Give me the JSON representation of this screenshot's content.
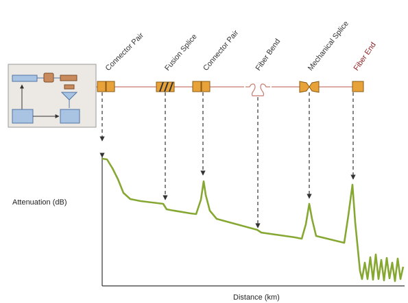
{
  "diagram": {
    "y_axis_label": "Attenuation (dB)",
    "x_axis_label": "Distance (km)",
    "events": [
      {
        "label": "Connector Pair",
        "type": "connector",
        "label_color": "#333333"
      },
      {
        "label": "Fusion Splice",
        "type": "fusion",
        "label_color": "#333333"
      },
      {
        "label": "Connector Pair",
        "type": "connector",
        "label_color": "#333333"
      },
      {
        "label": "Fiber Bend",
        "type": "bend",
        "label_color": "#333333"
      },
      {
        "label": "Mechanical Splice",
        "type": "mechanical",
        "label_color": "#333333"
      },
      {
        "label": "Fiber End",
        "type": "end",
        "label_color": "#8a1f1f"
      }
    ],
    "colors": {
      "trace": "#86a832",
      "fiber": "#c77a6e",
      "component_fill": "#e8a23a",
      "component_stroke": "#8a5a12",
      "otdr_box": "#ece9e4",
      "otdr_box_stroke": "#999999",
      "otdr_block": "#a9c4e3",
      "otdr_block_stroke": "#4f74a3",
      "otdr_brown": "#c98b5e",
      "arrow": "#333333"
    }
  }
}
